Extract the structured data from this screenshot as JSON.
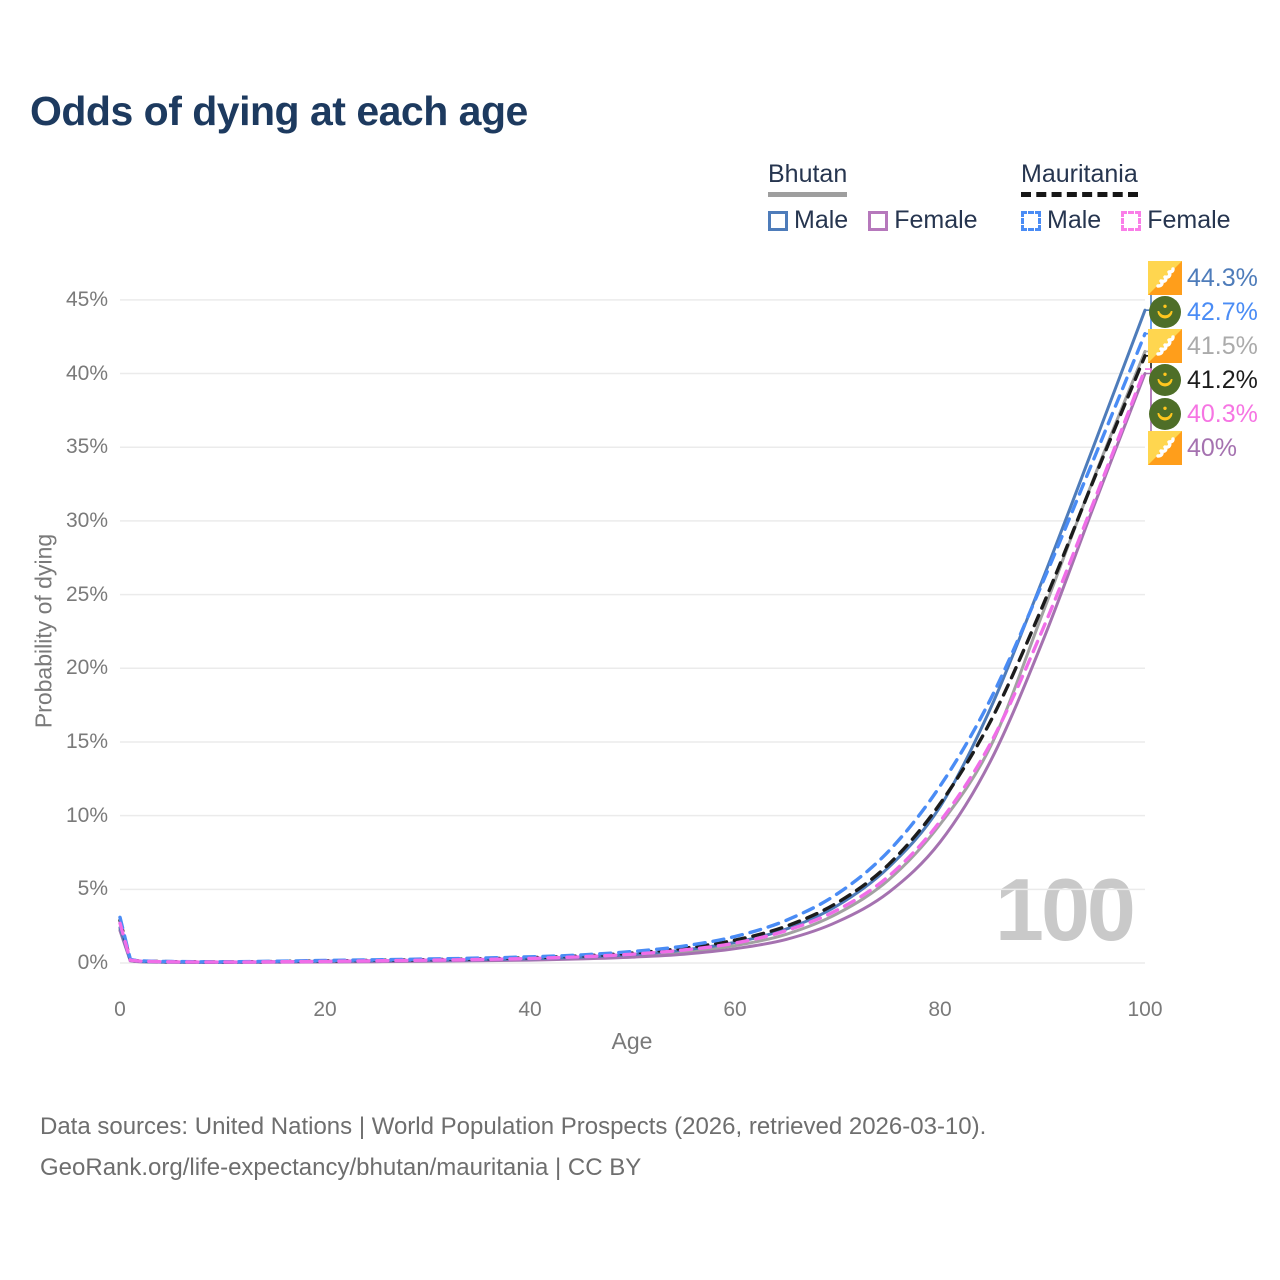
{
  "title": "Odds of dying at each age",
  "legend": {
    "groups": [
      {
        "label": "Bhutan",
        "line_style": "solid",
        "line_color": "#9e9e9e",
        "items": [
          {
            "label": "Male",
            "color": "#4E7CBA"
          },
          {
            "label": "Female",
            "color": "#B678BC"
          }
        ]
      },
      {
        "label": "Mauritania",
        "line_style": "dashed",
        "line_color": "#161616",
        "items": [
          {
            "label": "Male",
            "color": "#4A8CF5"
          },
          {
            "label": "Female",
            "color": "#FA7EE8"
          }
        ]
      }
    ]
  },
  "watermark": "100",
  "footer": {
    "line1": "Data sources: United Nations | World Population Prospects (2026, retrieved 2026-03-10).",
    "line2": "GeoRank.org/life-expectancy/bhutan/mauritania | CC BY"
  },
  "colors": {
    "title": "#1d3a5f",
    "axis_text": "#7a7a7a",
    "gridline": "#ebebeb",
    "bhutan_male": "#4E7CBA",
    "bhutan_female": "#A572B0",
    "bhutan_both": "#A2A2A2",
    "mauritania_male": "#4A8CF5",
    "mauritania_female": "#F06DE8",
    "mauritania_both": "#1C1C1C"
  },
  "chart_data": {
    "type": "line",
    "title": "Odds of dying at each age",
    "xlabel": "Age",
    "ylabel": "Probability of dying",
    "xlim": [
      0,
      100
    ],
    "ylim": [
      0,
      47
    ],
    "grid": "horizontal",
    "x_ticks": [
      {
        "label": "0",
        "value": 0
      },
      {
        "label": "20",
        "value": 20
      },
      {
        "label": "40",
        "value": 40
      },
      {
        "label": "60",
        "value": 60
      },
      {
        "label": "80",
        "value": 80
      },
      {
        "label": "100",
        "value": 100
      }
    ],
    "y_ticks": [
      {
        "label": "0%",
        "value": 0
      },
      {
        "label": "5%",
        "value": 5
      },
      {
        "label": "10%",
        "value": 10
      },
      {
        "label": "15%",
        "value": 15
      },
      {
        "label": "20%",
        "value": 20
      },
      {
        "label": "25%",
        "value": 25
      },
      {
        "label": "30%",
        "value": 30
      },
      {
        "label": "35%",
        "value": 35
      },
      {
        "label": "40%",
        "value": 40
      },
      {
        "label": "45%",
        "value": 45
      }
    ],
    "x": [
      0,
      1,
      2,
      5,
      10,
      15,
      20,
      25,
      30,
      35,
      40,
      45,
      50,
      55,
      60,
      65,
      70,
      75,
      80,
      85,
      90,
      95,
      100
    ],
    "series": [
      {
        "name": "Bhutan both sexes",
        "country": "Bhutan",
        "sex": "both",
        "style": "solid",
        "color": "#A2A2A2",
        "values": [
          2.3,
          0.16,
          0.09,
          0.05,
          0.04,
          0.07,
          0.1,
          0.12,
          0.15,
          0.19,
          0.25,
          0.34,
          0.49,
          0.74,
          1.18,
          1.95,
          3.35,
          5.65,
          9.4,
          14.8,
          23.7,
          32.9,
          41.5
        ]
      },
      {
        "name": "Bhutan female",
        "country": "Bhutan",
        "sex": "female",
        "style": "solid",
        "color": "#A572B0",
        "values": [
          2.2,
          0.15,
          0.08,
          0.05,
          0.04,
          0.05,
          0.07,
          0.09,
          0.12,
          0.15,
          0.2,
          0.28,
          0.4,
          0.6,
          0.97,
          1.6,
          2.8,
          4.8,
          8.2,
          13.8,
          21.8,
          31.0,
          40.0
        ]
      },
      {
        "name": "Bhutan male",
        "country": "Bhutan",
        "sex": "male",
        "style": "solid",
        "color": "#4E7CBA",
        "values": [
          2.4,
          0.18,
          0.1,
          0.06,
          0.05,
          0.08,
          0.12,
          0.15,
          0.18,
          0.22,
          0.29,
          0.4,
          0.58,
          0.88,
          1.4,
          2.3,
          3.9,
          6.5,
          10.6,
          17.4,
          26.0,
          35.1,
          44.3
        ]
      },
      {
        "name": "Mauritania both sexes",
        "country": "Mauritania",
        "sex": "both",
        "style": "dashed",
        "color": "#1C1C1C",
        "values": [
          2.9,
          0.22,
          0.13,
          0.09,
          0.07,
          0.1,
          0.14,
          0.18,
          0.23,
          0.28,
          0.36,
          0.48,
          0.68,
          1.0,
          1.55,
          2.5,
          4.1,
          6.7,
          10.8,
          16.5,
          24.2,
          32.8,
          41.2
        ]
      },
      {
        "name": "Mauritania male",
        "country": "Mauritania",
        "sex": "male",
        "style": "dashed",
        "color": "#4A8CF5",
        "values": [
          3.1,
          0.25,
          0.15,
          0.1,
          0.08,
          0.12,
          0.17,
          0.22,
          0.27,
          0.33,
          0.42,
          0.55,
          0.78,
          1.15,
          1.8,
          2.9,
          4.7,
          7.6,
          12.0,
          18.0,
          25.8,
          34.2,
          42.7
        ]
      },
      {
        "name": "Mauritania female",
        "country": "Mauritania",
        "sex": "female",
        "style": "dashed",
        "color": "#F06DE8",
        "values": [
          2.7,
          0.2,
          0.12,
          0.08,
          0.06,
          0.08,
          0.11,
          0.15,
          0.19,
          0.24,
          0.31,
          0.42,
          0.6,
          0.88,
          1.35,
          2.2,
          3.6,
          5.9,
          9.6,
          15.0,
          22.6,
          31.3,
          40.3
        ]
      }
    ],
    "end_labels": [
      {
        "value": "44.3%",
        "flag": "bhutan",
        "color": "#4E7CBA",
        "series": "Bhutan male"
      },
      {
        "value": "42.7%",
        "flag": "mauritania",
        "color": "#4A8CF5",
        "series": "Mauritania male"
      },
      {
        "value": "41.5%",
        "flag": "bhutan",
        "color": "#ABABAB",
        "series": "Bhutan both sexes"
      },
      {
        "value": "41.2%",
        "flag": "mauritania",
        "color": "#1C1C1C",
        "series": "Mauritania both sexes"
      },
      {
        "value": "40.3%",
        "flag": "mauritania",
        "color": "#F675E3",
        "series": "Mauritania female"
      },
      {
        "value": "40%",
        "flag": "bhutan",
        "color": "#A572B0",
        "series": "Bhutan female"
      }
    ],
    "legend_position": "top-right"
  }
}
